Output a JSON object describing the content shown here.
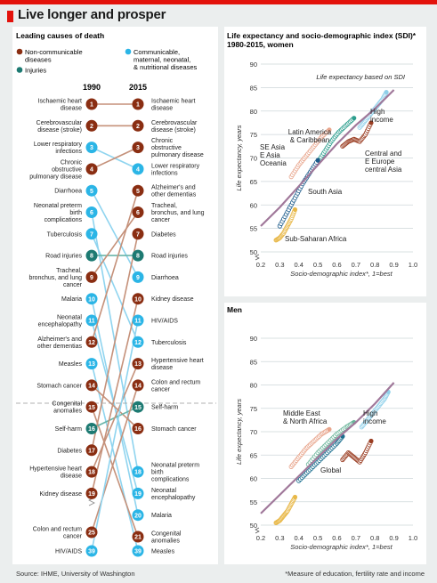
{
  "title": "Live longer and prosper",
  "source": "Source: IHME, University of Washington",
  "footnote": "*Measure of education, fertility rate and income",
  "colors": {
    "noncommunicable": "#8a2e12",
    "communicable": "#2bb5e6",
    "injuries": "#1d7a72",
    "line_noncom": "#c5917a",
    "line_com": "#8fd4ef",
    "line_inj": "#6ab5a9",
    "sdi_line": "#a0789a",
    "latin": "#2d9e8e",
    "high": "#8fd0ea",
    "cee": "#9a3d22",
    "seasia": "#e8a58c",
    "southasia": "#1a5a8a",
    "ssa": "#e8b848",
    "mena": "#6ab59a",
    "global": "#1a6e8e"
  },
  "left_panel": {
    "heading": "Leading causes of death",
    "legend": {
      "noncommunicable": "Non-communicable diseases",
      "injuries": "Injuries",
      "communicable": "Communicable, maternal, neonatal, & nutritional diseases"
    },
    "col_1990": "1990",
    "col_2015": "2015"
  },
  "chart_data": [
    {
      "type": "table",
      "title": "Leading causes of death",
      "columns": [
        "1990",
        "2015"
      ],
      "rows_1990": [
        {
          "rank": "1",
          "name": "Ischaemic heart disease",
          "cat": "n",
          "rank2015": 1
        },
        {
          "rank": "2",
          "name": "Cerebrovascular disease (stroke)",
          "cat": "n",
          "rank2015": 2
        },
        {
          "rank": "3",
          "name": "Lower respiratory infections",
          "cat": "c",
          "rank2015": 4
        },
        {
          "rank": "4",
          "name": "Chronic obstructive pulmonary disease",
          "cat": "n",
          "rank2015": 3
        },
        {
          "rank": "5",
          "name": "Diarrhoea",
          "cat": "c",
          "rank2015": 9
        },
        {
          "rank": "6",
          "name": "Neonatal preterm birth complications",
          "cat": "c",
          "rank2015": 18
        },
        {
          "rank": "7",
          "name": "Tuberculosis",
          "cat": "c",
          "rank2015": 12
        },
        {
          "rank": "8",
          "name": "Road injuries",
          "cat": "i",
          "rank2015": 8
        },
        {
          "rank": "9",
          "name": "Tracheal, bronchus, and lung cancer",
          "cat": "n",
          "rank2015": 6
        },
        {
          "rank": "10",
          "name": "Malaria",
          "cat": "c",
          "rank2015": 20
        },
        {
          "rank": "11",
          "name": "Neonatal encephalopathy",
          "cat": "c",
          "rank2015": 19
        },
        {
          "rank": "12",
          "name": "Alzheimer's and other dementias",
          "cat": "n",
          "rank2015": 5
        },
        {
          "rank": "13",
          "name": "Measles",
          "cat": "c",
          "rank2015": 39
        },
        {
          "rank": "14",
          "name": "Stomach cancer",
          "cat": "n",
          "rank2015": 16
        },
        {
          "rank": "15",
          "name": "Congenital anomalies",
          "cat": "n",
          "rank2015": 21
        },
        {
          "rank": "16",
          "name": "Self-harm",
          "cat": "i",
          "rank2015": 15
        },
        {
          "rank": "17",
          "name": "Diabetes",
          "cat": "n",
          "rank2015": 7
        },
        {
          "rank": "18",
          "name": "Hypertensive heart disease",
          "cat": "n",
          "rank2015": 13
        },
        {
          "rank": "19",
          "name": "Kidney disease",
          "cat": "n",
          "rank2015": 10
        },
        {
          "rank": "25",
          "name": "Colon and rectum cancer",
          "cat": "n",
          "rank2015": 14
        },
        {
          "rank": "39",
          "name": "HIV/AIDS",
          "cat": "c",
          "rank2015": 11
        }
      ],
      "rows_2015": [
        {
          "rank": "1",
          "name": "Ischaemic heart disease",
          "cat": "n"
        },
        {
          "rank": "2",
          "name": "Cerebrovascular disease (stroke)",
          "cat": "n"
        },
        {
          "rank": "3",
          "name": "Chronic obstructive pulmonary disease",
          "cat": "n"
        },
        {
          "rank": "4",
          "name": "Lower respiratory infections",
          "cat": "c"
        },
        {
          "rank": "5",
          "name": "Alzheimer's and other dementias",
          "cat": "n"
        },
        {
          "rank": "6",
          "name": "Tracheal, bronchus, and lung cancer",
          "cat": "n"
        },
        {
          "rank": "7",
          "name": "Diabetes",
          "cat": "n"
        },
        {
          "rank": "8",
          "name": "Road injuries",
          "cat": "i"
        },
        {
          "rank": "9",
          "name": "Diarrhoea",
          "cat": "c"
        },
        {
          "rank": "10",
          "name": "Kidney disease",
          "cat": "n"
        },
        {
          "rank": "11",
          "name": "HIV/AIDS",
          "cat": "c"
        },
        {
          "rank": "12",
          "name": "Tuberculosis",
          "cat": "c"
        },
        {
          "rank": "13",
          "name": "Hypertensive heart disease",
          "cat": "n"
        },
        {
          "rank": "14",
          "name": "Colon and rectum cancer",
          "cat": "n"
        },
        {
          "rank": "15",
          "name": "Self-harm",
          "cat": "i"
        },
        {
          "rank": "16",
          "name": "Stomach cancer",
          "cat": "n"
        },
        {
          "rank": "18",
          "name": "Neonatal preterm birth complications",
          "cat": "c"
        },
        {
          "rank": "19",
          "name": "Neonatal encephalopathy",
          "cat": "c"
        },
        {
          "rank": "20",
          "name": "Malaria",
          "cat": "c"
        },
        {
          "rank": "21",
          "name": "Congenital anomalies",
          "cat": "n"
        },
        {
          "rank": "39",
          "name": "Measles",
          "cat": "c"
        }
      ]
    },
    {
      "type": "scatter",
      "title": "Life expectancy and socio-demographic index (SDI)* 1980-2015, women",
      "xlabel": "Socio-demographic index*, 1=best",
      "ylabel": "Life expectancy, years",
      "xlim": [
        0.2,
        1.0
      ],
      "ylim": [
        50,
        90
      ],
      "xticks": [
        "0.2",
        "0.3",
        "0.4",
        "0.5",
        "0.6",
        "0.7",
        "0.8",
        "0.9",
        "1.0"
      ],
      "yticks": [
        "50",
        "55",
        "60",
        "65",
        "70",
        "75",
        "80",
        "85",
        "90"
      ],
      "reference_line": {
        "name": "Life expectancy based on SDI",
        "x": [
          0.2,
          0.3,
          0.4,
          0.5,
          0.6,
          0.7,
          0.8,
          0.9
        ],
        "y": [
          55.5,
          59.5,
          64.0,
          68.5,
          73.0,
          77.0,
          80.5,
          84.5
        ]
      },
      "series": [
        {
          "name": "Latin America & Caribbean",
          "key": "latin",
          "x": [
            0.49,
            0.53,
            0.57,
            0.61,
            0.65,
            0.69
          ],
          "y": [
            68.5,
            71,
            73.5,
            75.5,
            77,
            78.5
          ]
        },
        {
          "name": "High income",
          "key": "high",
          "x": [
            0.72,
            0.75,
            0.78,
            0.81,
            0.84,
            0.86
          ],
          "y": [
            76.5,
            78,
            79.5,
            81,
            82.5,
            84
          ]
        },
        {
          "name": "Central and E Europe & central Asia",
          "key": "cee",
          "x": [
            0.63,
            0.66,
            0.69,
            0.72,
            0.75,
            0.78
          ],
          "y": [
            72.5,
            73.5,
            74,
            73.5,
            75,
            77.5
          ]
        },
        {
          "name": "SE Asia, E Asia & Oceania",
          "key": "seasia",
          "x": [
            0.36,
            0.4,
            0.44,
            0.48,
            0.52,
            0.56
          ],
          "y": [
            66,
            68.5,
            70.5,
            72.5,
            74.5,
            76
          ]
        },
        {
          "name": "South Asia",
          "key": "southasia",
          "x": [
            0.3,
            0.34,
            0.38,
            0.42,
            0.46,
            0.5
          ],
          "y": [
            55.5,
            58.5,
            61.5,
            64.5,
            67,
            69.5
          ]
        },
        {
          "name": "Sub-Saharan Africa",
          "key": "ssa",
          "x": [
            0.28,
            0.3,
            0.32,
            0.34,
            0.36,
            0.38
          ],
          "y": [
            52.5,
            53,
            54,
            55.5,
            57,
            59
          ]
        }
      ]
    },
    {
      "type": "scatter",
      "title": "Men",
      "xlabel": "Socio-demographic index*, 1=best",
      "ylabel": "Life expectancy, years",
      "xlim": [
        0.2,
        1.0
      ],
      "ylim": [
        50,
        90
      ],
      "xticks": [
        "0.2",
        "0.3",
        "0.4",
        "0.5",
        "0.6",
        "0.7",
        "0.8",
        "0.9",
        "1.0"
      ],
      "yticks": [
        "50",
        "55",
        "60",
        "65",
        "70",
        "75",
        "80",
        "85",
        "90"
      ],
      "reference_line": {
        "name": "",
        "x": [
          0.2,
          0.3,
          0.4,
          0.5,
          0.6,
          0.7,
          0.8,
          0.9
        ],
        "y": [
          52.5,
          56.5,
          60.5,
          64.5,
          68.5,
          72.0,
          76.0,
          80.5
        ]
      },
      "series": [
        {
          "name": "Middle East & North Africa",
          "key": "mena",
          "x": [
            0.45,
            0.5,
            0.55,
            0.6,
            0.65,
            0.69
          ],
          "y": [
            63,
            65.5,
            67.5,
            69.5,
            71,
            72
          ]
        },
        {
          "name": "High income",
          "key": "high",
          "x": [
            0.73,
            0.76,
            0.79,
            0.82,
            0.85,
            0.87
          ],
          "y": [
            71,
            72.5,
            74,
            75.5,
            77,
            78.5
          ]
        },
        {
          "name": "Central and E Europe & central Asia",
          "key": "cee",
          "x": [
            0.63,
            0.66,
            0.69,
            0.72,
            0.75,
            0.78
          ],
          "y": [
            64,
            65.5,
            64.5,
            63.5,
            65.5,
            68
          ]
        },
        {
          "name": "SE Asia, E Asia & Oceania",
          "key": "seasia",
          "x": [
            0.36,
            0.4,
            0.44,
            0.48,
            0.52,
            0.56
          ],
          "y": [
            62.5,
            64.5,
            66.5,
            68,
            69.5,
            70.5
          ]
        },
        {
          "name": "Global",
          "key": "global",
          "x": [
            0.4,
            0.45,
            0.5,
            0.55,
            0.6,
            0.63
          ],
          "y": [
            59.5,
            61.5,
            63.5,
            65.5,
            67.5,
            69
          ]
        },
        {
          "name": "Sub-Saharan Africa",
          "key": "ssa",
          "x": [
            0.28,
            0.3,
            0.32,
            0.34,
            0.36,
            0.38
          ],
          "y": [
            50.5,
            51,
            52,
            53,
            54.5,
            56
          ]
        }
      ]
    }
  ],
  "women_labels": {
    "ref": "Life expectancy based on SDI",
    "latin": "Latin America & Caribbean",
    "high": "High income",
    "seasia": "SE Asia, E Asia & Oceania",
    "cee": "Central and E Europe & central Asia",
    "southasia": "South Asia",
    "ssa": "Sub-Saharan Africa"
  },
  "men_labels": {
    "mena": "Middle East & North Africa",
    "high": "High income",
    "global": "Global"
  }
}
